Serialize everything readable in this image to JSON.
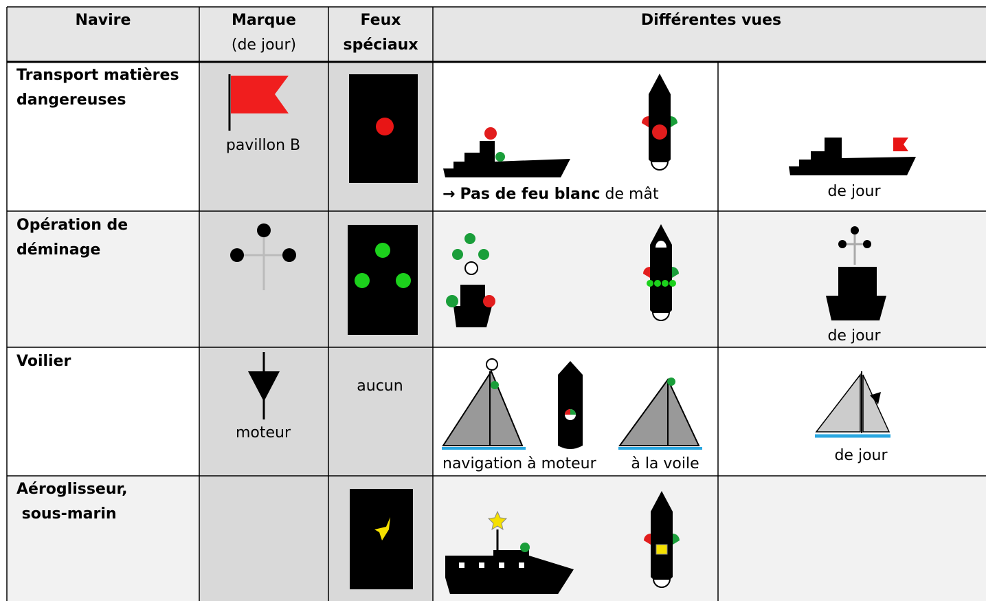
{
  "header": {
    "navire": "Navire",
    "marque": [
      "Marque",
      "(de jour)"
    ],
    "feux": [
      "Feux",
      "spéciaux"
    ],
    "vues": "Différentes vues"
  },
  "rows": [
    {
      "navire": [
        "Transport matières",
        "dangereuses"
      ],
      "marque": "pavillon B",
      "vues": [
        {
          "arrow": "→",
          "bold": "Pas de feu blanc",
          "text": " de mât"
        },
        "de jour"
      ]
    },
    {
      "navire": [
        "Opération de",
        "déminage"
      ],
      "vues": [
        "de jour"
      ]
    },
    {
      "navire": [
        "Voilier"
      ],
      "marque": "moteur",
      "feux": "aucun",
      "vues": [
        "navigation à moteur",
        "à la voile",
        "de jour"
      ]
    },
    {
      "navire": [
        "Aéroglisseur,",
        " sous-marin"
      ]
    }
  ]
}
